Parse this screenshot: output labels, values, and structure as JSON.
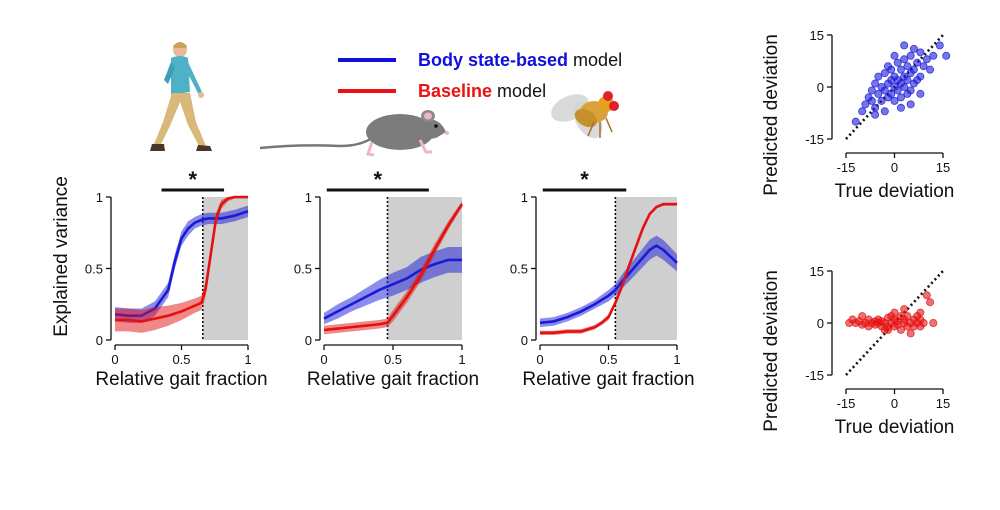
{
  "legend": {
    "entries": [
      {
        "bold": "Body state-based",
        "rest": " model",
        "color": "#1010dd"
      },
      {
        "bold": "Baseline",
        "rest": " model",
        "color": "#ee1111"
      }
    ]
  },
  "colors": {
    "blue": "#1a1ad8",
    "red": "#e41111",
    "shade": "#cfcfcf"
  },
  "icons": [
    "walking-human-icon",
    "mouse-icon",
    "fruit-fly-icon"
  ],
  "chart_data": [
    {
      "type": "line",
      "panel": "human",
      "xlabel": "Relative gait fraction",
      "ylabel": "Explained variance",
      "xlim": [
        0,
        1
      ],
      "ylim": [
        0,
        1
      ],
      "xticks": [
        "0",
        "0.5",
        "1"
      ],
      "yticks": [
        "0",
        "0.5",
        "1"
      ],
      "shade_from": 0.66,
      "significance_bar": [
        0.35,
        0.82
      ],
      "significance_label": "*",
      "series": [
        {
          "color": "blue",
          "x": [
            0,
            0.1,
            0.2,
            0.3,
            0.4,
            0.45,
            0.5,
            0.55,
            0.6,
            0.65,
            0.7,
            0.8,
            0.9,
            1.0
          ],
          "values": [
            0.18,
            0.17,
            0.17,
            0.22,
            0.35,
            0.55,
            0.71,
            0.78,
            0.82,
            0.84,
            0.85,
            0.85,
            0.87,
            0.9
          ],
          "band": [
            0.05,
            0.05,
            0.05,
            0.05,
            0.05,
            0.05,
            0.05,
            0.05,
            0.04,
            0.04,
            0.04,
            0.04,
            0.04,
            0.04
          ]
        },
        {
          "color": "red",
          "x": [
            0,
            0.1,
            0.2,
            0.3,
            0.4,
            0.5,
            0.6,
            0.65,
            0.68,
            0.72,
            0.76,
            0.8,
            0.85,
            0.9,
            1.0
          ],
          "values": [
            0.14,
            0.14,
            0.13,
            0.15,
            0.17,
            0.2,
            0.24,
            0.26,
            0.35,
            0.6,
            0.85,
            0.95,
            0.99,
            1.0,
            1.0
          ],
          "band": [
            0.08,
            0.08,
            0.08,
            0.08,
            0.07,
            0.06,
            0.05,
            0.05,
            0.05,
            0.05,
            0.04,
            0.03,
            0.02,
            0.01,
            0.01
          ]
        }
      ]
    },
    {
      "type": "line",
      "panel": "mouse",
      "xlabel": "Relative gait fraction",
      "ylabel": "",
      "xlim": [
        0,
        1
      ],
      "ylim": [
        0,
        1
      ],
      "xticks": [
        "0",
        "0.5",
        "1"
      ],
      "yticks": [
        "0",
        "0.5",
        "1"
      ],
      "shade_from": 0.46,
      "significance_bar": [
        0.02,
        0.76
      ],
      "significance_label": "*",
      "series": [
        {
          "color": "blue",
          "x": [
            0,
            0.1,
            0.2,
            0.3,
            0.4,
            0.5,
            0.6,
            0.7,
            0.8,
            0.9,
            1.0
          ],
          "values": [
            0.15,
            0.2,
            0.25,
            0.3,
            0.35,
            0.39,
            0.43,
            0.49,
            0.53,
            0.56,
            0.56
          ],
          "band": [
            0.04,
            0.05,
            0.05,
            0.06,
            0.07,
            0.08,
            0.08,
            0.09,
            0.09,
            0.09,
            0.09
          ]
        },
        {
          "color": "red",
          "x": [
            0,
            0.1,
            0.2,
            0.3,
            0.4,
            0.46,
            0.5,
            0.6,
            0.7,
            0.8,
            0.9,
            1.0
          ],
          "values": [
            0.07,
            0.08,
            0.09,
            0.1,
            0.11,
            0.12,
            0.17,
            0.3,
            0.45,
            0.63,
            0.8,
            0.95
          ],
          "band": [
            0.03,
            0.03,
            0.03,
            0.03,
            0.03,
            0.03,
            0.04,
            0.04,
            0.04,
            0.04,
            0.03,
            0.02
          ]
        }
      ]
    },
    {
      "type": "line",
      "panel": "fly",
      "xlabel": "Relative gait fraction",
      "ylabel": "",
      "xlim": [
        0,
        1
      ],
      "ylim": [
        0,
        1
      ],
      "xticks": [
        "0",
        "0.5",
        "1"
      ],
      "yticks": [
        "0",
        "0.5",
        "1"
      ],
      "shade_from": 0.55,
      "significance_bar": [
        0.02,
        0.63
      ],
      "significance_label": "*",
      "series": [
        {
          "color": "blue",
          "x": [
            0,
            0.1,
            0.2,
            0.3,
            0.4,
            0.5,
            0.55,
            0.6,
            0.7,
            0.8,
            0.85,
            0.9,
            1.0
          ],
          "values": [
            0.12,
            0.13,
            0.16,
            0.2,
            0.25,
            0.31,
            0.35,
            0.41,
            0.52,
            0.63,
            0.66,
            0.63,
            0.54
          ],
          "band": [
            0.03,
            0.03,
            0.03,
            0.03,
            0.03,
            0.04,
            0.04,
            0.05,
            0.06,
            0.07,
            0.07,
            0.07,
            0.06
          ]
        },
        {
          "color": "red",
          "x": [
            0,
            0.1,
            0.2,
            0.3,
            0.4,
            0.45,
            0.5,
            0.55,
            0.6,
            0.65,
            0.7,
            0.75,
            0.8,
            0.85,
            0.9,
            0.95,
            1.0
          ],
          "values": [
            0.05,
            0.05,
            0.06,
            0.06,
            0.09,
            0.12,
            0.16,
            0.26,
            0.38,
            0.52,
            0.65,
            0.78,
            0.88,
            0.93,
            0.95,
            0.95,
            0.95
          ],
          "band": [
            0.015,
            0.015,
            0.015,
            0.015,
            0.015,
            0.015,
            0.02,
            0.02,
            0.02,
            0.02,
            0.02,
            0.02,
            0.01,
            0.01,
            0.01,
            0.01,
            0.01
          ]
        }
      ]
    },
    {
      "type": "scatter",
      "panel": "body-state",
      "xlabel": "True deviation",
      "ylabel": "Predicted deviation",
      "xlim": [
        -15,
        15
      ],
      "ylim": [
        -15,
        15
      ],
      "xticks": [
        "-15",
        "0",
        "15"
      ],
      "yticks": [
        "-15",
        "0",
        "15"
      ],
      "color": "blue",
      "identity_line": true,
      "x": [
        -12,
        -10,
        -9,
        -8,
        -7,
        -7,
        -6,
        -6,
        -5,
        -5,
        -4,
        -4,
        -3,
        -3,
        -2,
        -2,
        -2,
        -1,
        -1,
        -1,
        0,
        0,
        0,
        1,
        1,
        1,
        2,
        2,
        2,
        3,
        3,
        3,
        4,
        4,
        4,
        5,
        5,
        5,
        6,
        6,
        6,
        7,
        7,
        8,
        8,
        9,
        10,
        11,
        12,
        14,
        16,
        -6,
        -3,
        2,
        5,
        8,
        0,
        3
      ],
      "y": [
        -10,
        -7,
        -5,
        -3,
        -4,
        -1,
        -6,
        1,
        -2,
        3,
        -4,
        0,
        -1,
        4,
        -3,
        1,
        6,
        -2,
        2,
        5,
        -4,
        0,
        3,
        -1,
        2,
        7,
        -3,
        1,
        5,
        0,
        3,
        8,
        -2,
        2,
        6,
        -1,
        4,
        9,
        1,
        5,
        11,
        2,
        7,
        3,
        10,
        6,
        8,
        5,
        9,
        12,
        9,
        -8,
        -7,
        -6,
        -5,
        -2,
        9,
        12
      ]
    },
    {
      "type": "scatter",
      "panel": "baseline",
      "xlabel": "True deviation",
      "ylabel": "Predicted deviation",
      "xlim": [
        -15,
        15
      ],
      "ylim": [
        -15,
        15
      ],
      "xticks": [
        "-15",
        "0",
        "15"
      ],
      "yticks": [
        "-15",
        "0",
        "15"
      ],
      "color": "red",
      "identity_line": true,
      "x": [
        -14,
        -13,
        -12,
        -11,
        -10,
        -9,
        -8,
        -8,
        -7,
        -6,
        -6,
        -5,
        -5,
        -4,
        -4,
        -3,
        -3,
        -2,
        -2,
        -1,
        -1,
        0,
        0,
        0,
        1,
        1,
        2,
        2,
        3,
        3,
        4,
        4,
        5,
        5,
        6,
        6,
        7,
        7,
        8,
        8,
        9,
        10,
        11,
        12,
        -10,
        -2,
        3,
        8
      ],
      "y": [
        0,
        1,
        0,
        0.5,
        -0.5,
        0,
        1,
        -1,
        0,
        0.5,
        -0.5,
        1,
        0,
        -1,
        0.5,
        0,
        -2,
        1.5,
        -1,
        0,
        2,
        -1,
        1,
        3,
        -0.5,
        0.5,
        2,
        -2,
        0,
        1,
        -1,
        2,
        0,
        -3,
        1,
        -1,
        0,
        2,
        -1,
        1,
        0,
        8,
        6,
        0,
        2,
        -2,
        4,
        3
      ]
    }
  ]
}
